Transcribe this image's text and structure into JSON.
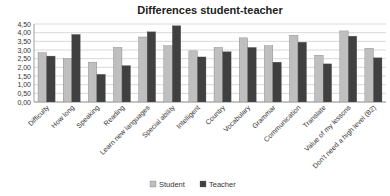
{
  "chart_data": {
    "type": "bar",
    "title": "Differences student-teacher",
    "categories": [
      "Difficulty",
      "How long",
      "Speaking",
      "Reading",
      "Learn new languages",
      "Special ability",
      "Intelligent",
      "Country",
      "Vocabulary",
      "Grammar",
      "Communication",
      "Translate",
      "Value of my lessons",
      "Don't need a high level (B2)"
    ],
    "series": [
      {
        "name": "Student",
        "color": "#bfbfbf",
        "values": [
          2.85,
          2.5,
          2.3,
          3.15,
          3.75,
          3.25,
          2.95,
          3.15,
          3.7,
          3.25,
          3.85,
          2.7,
          4.1,
          3.1
        ]
      },
      {
        "name": "Teacher",
        "color": "#404040",
        "values": [
          2.65,
          3.9,
          1.6,
          2.1,
          4.05,
          4.4,
          2.6,
          2.9,
          3.15,
          2.3,
          3.45,
          2.2,
          3.8,
          2.55
        ]
      }
    ],
    "ylim": [
      0,
      4.5
    ],
    "yticks": [
      {
        "value": 0,
        "label": "0,00"
      },
      {
        "value": 0.5,
        "label": "0,50"
      },
      {
        "value": 1,
        "label": "1,00"
      },
      {
        "value": 1.5,
        "label": "1,50"
      },
      {
        "value": 2,
        "label": "2,00"
      },
      {
        "value": 2.5,
        "label": "2,50"
      },
      {
        "value": 3,
        "label": "3,00"
      },
      {
        "value": 3.5,
        "label": "3,50"
      },
      {
        "value": 4,
        "label": "4,00"
      },
      {
        "value": 4.5,
        "label": "4,50"
      }
    ],
    "grid": true,
    "legend": "bottom"
  }
}
